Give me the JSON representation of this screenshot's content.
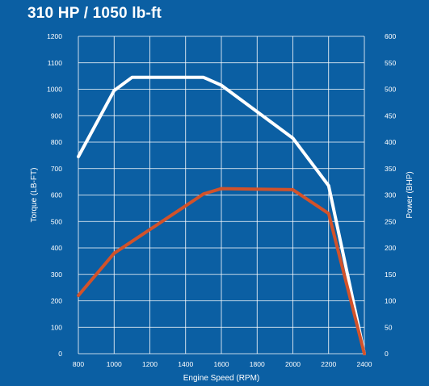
{
  "chart_data": {
    "type": "line",
    "title": "310 HP / 1050 lb-ft",
    "xlabel": "Engine Speed (RPM)",
    "ylabel_left": "Torque (LB-FT)",
    "ylabel_right": "Power (BHP)",
    "x_ticks": [
      "800",
      "1000",
      "1200",
      "1400",
      "1600",
      "1800",
      "2000",
      "2200",
      "2400"
    ],
    "y_left_ticks": [
      "0",
      "100",
      "200",
      "300",
      "400",
      "500",
      "600",
      "700",
      "800",
      "900",
      "1000",
      "1100",
      "1200"
    ],
    "y_right_ticks": [
      "0",
      "50",
      "100",
      "150",
      "200",
      "250",
      "300",
      "350",
      "400",
      "450",
      "500",
      "550",
      "600"
    ],
    "xlim": [
      800,
      2400
    ],
    "ylim_left": [
      0,
      1200
    ],
    "ylim_right": [
      0,
      600
    ],
    "grid": true,
    "colors": {
      "background": "#0b5fa3",
      "grid": "#ffffff",
      "torque": "#ffffff",
      "power": "#d2522a"
    },
    "series": [
      {
        "axis": "left",
        "color": "#ffffff",
        "x": [
          800,
          1000,
          1100,
          1500,
          1600,
          2000,
          2200,
          2400
        ],
        "y": [
          745,
          995,
          1045,
          1045,
          1015,
          815,
          635,
          0
        ]
      },
      {
        "axis": "right",
        "color": "#d2522a",
        "x": [
          800,
          1000,
          1500,
          1600,
          2000,
          2200,
          2400
        ],
        "y": [
          110,
          190,
          302,
          312,
          310,
          265,
          0
        ]
      }
    ]
  }
}
